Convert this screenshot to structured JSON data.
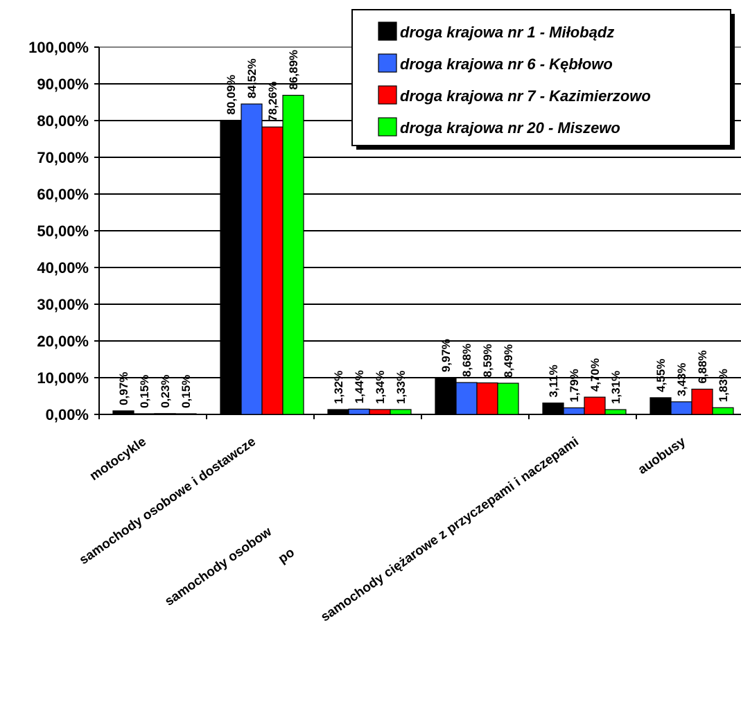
{
  "chart_data": {
    "type": "bar",
    "categories": [
      "motocykle",
      "samochody osobowe i dostawcze",
      "samochody osobow",
      "po",
      "samochody ciężarowe z przyczepami i naczepami",
      "auobusy"
    ],
    "series": [
      {
        "name": "droga krajowa nr 1 - Miłobądz",
        "color": "#000000",
        "values": [
          0.97,
          80.09,
          1.32,
          9.97,
          3.11,
          4.55
        ],
        "labels": [
          "0,97%",
          "80,09%",
          "1,32%",
          "9,97%",
          "3,11%",
          "4,55%"
        ]
      },
      {
        "name": "droga krajowa nr 6 - Kębłowo",
        "color": "#3366ff",
        "values": [
          0.15,
          84.52,
          1.44,
          8.68,
          1.79,
          3.43
        ],
        "labels": [
          "0,15%",
          "84,52%",
          "1,44%",
          "8,68%",
          "1,79%",
          "3,43%"
        ]
      },
      {
        "name": "droga krajowa nr 7 - Kazimierzowo",
        "color": "#ff0000",
        "values": [
          0.23,
          78.26,
          1.34,
          8.59,
          4.7,
          6.88
        ],
        "labels": [
          "0,23%",
          "78,26%",
          "1,34%",
          "8,59%",
          "4,70%",
          "6,88%"
        ]
      },
      {
        "name": "droga krajowa nr 20 - Miszewo",
        "color": "#00ff00",
        "values": [
          0.15,
          86.89,
          1.33,
          8.49,
          1.31,
          1.83
        ],
        "labels": [
          "0,15%",
          "86,89%",
          "1,33%",
          "8,49%",
          "1,31%",
          "1,83%"
        ]
      }
    ],
    "ylim": [
      0,
      100
    ],
    "yticks": [
      0,
      10,
      20,
      30,
      40,
      50,
      60,
      70,
      80,
      90,
      100
    ],
    "ytick_labels": [
      "0,00%",
      "10,00%",
      "20,00%",
      "30,00%",
      "40,00%",
      "50,00%",
      "60,00%",
      "70,00%",
      "80,00%",
      "90,00%",
      "100,00%"
    ],
    "grid": true,
    "legend_position": "top-right",
    "title": "",
    "xlabel": "",
    "ylabel": ""
  }
}
